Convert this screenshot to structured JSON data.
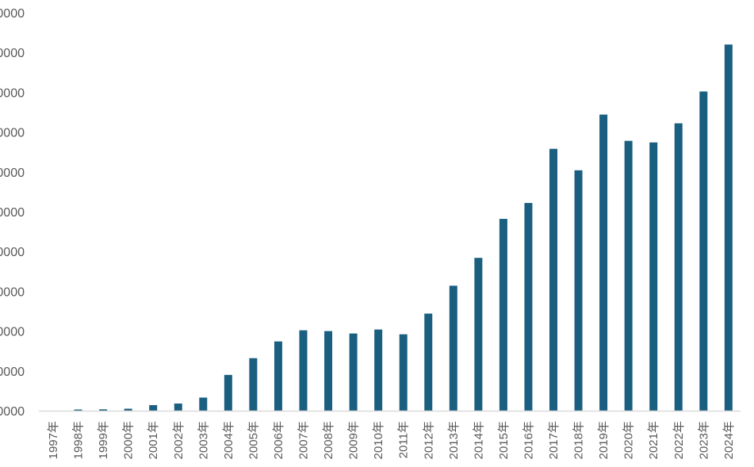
{
  "chart_data": {
    "type": "bar",
    "title": "",
    "xlabel": "",
    "ylabel": "",
    "grid": false,
    "legend": "none",
    "bar_color": "#1a5e80",
    "axis_color": "#d9d9d9",
    "ylim": [
      0,
      100000
    ],
    "ytick_labels": [
      "0000",
      "0000",
      "0000",
      "0000",
      "0000",
      "0000",
      "0000",
      "0000",
      "0000",
      "0000",
      "0000"
    ],
    "categories": [
      "1997年",
      "1998年",
      "1999年",
      "2000年",
      "2001年",
      "2002年",
      "2003年",
      "2004年",
      "2005年",
      "2006年",
      "2007年",
      "2008年",
      "2009年",
      "2010年",
      "2011年",
      "2012年",
      "2013年",
      "2014年",
      "2015年",
      "2016年",
      "2017年",
      "2018年",
      "2019年",
      "2020年",
      "2021年",
      "2022年",
      "2023年",
      "2024年"
    ],
    "values": [
      0,
      300,
      350,
      500,
      1400,
      1800,
      3300,
      9000,
      13200,
      17400,
      20200,
      20000,
      19400,
      20400,
      19200,
      24400,
      31400,
      38400,
      48200,
      52200,
      65800,
      60400,
      74400,
      67800,
      67400,
      72200,
      80200,
      92000
    ]
  }
}
